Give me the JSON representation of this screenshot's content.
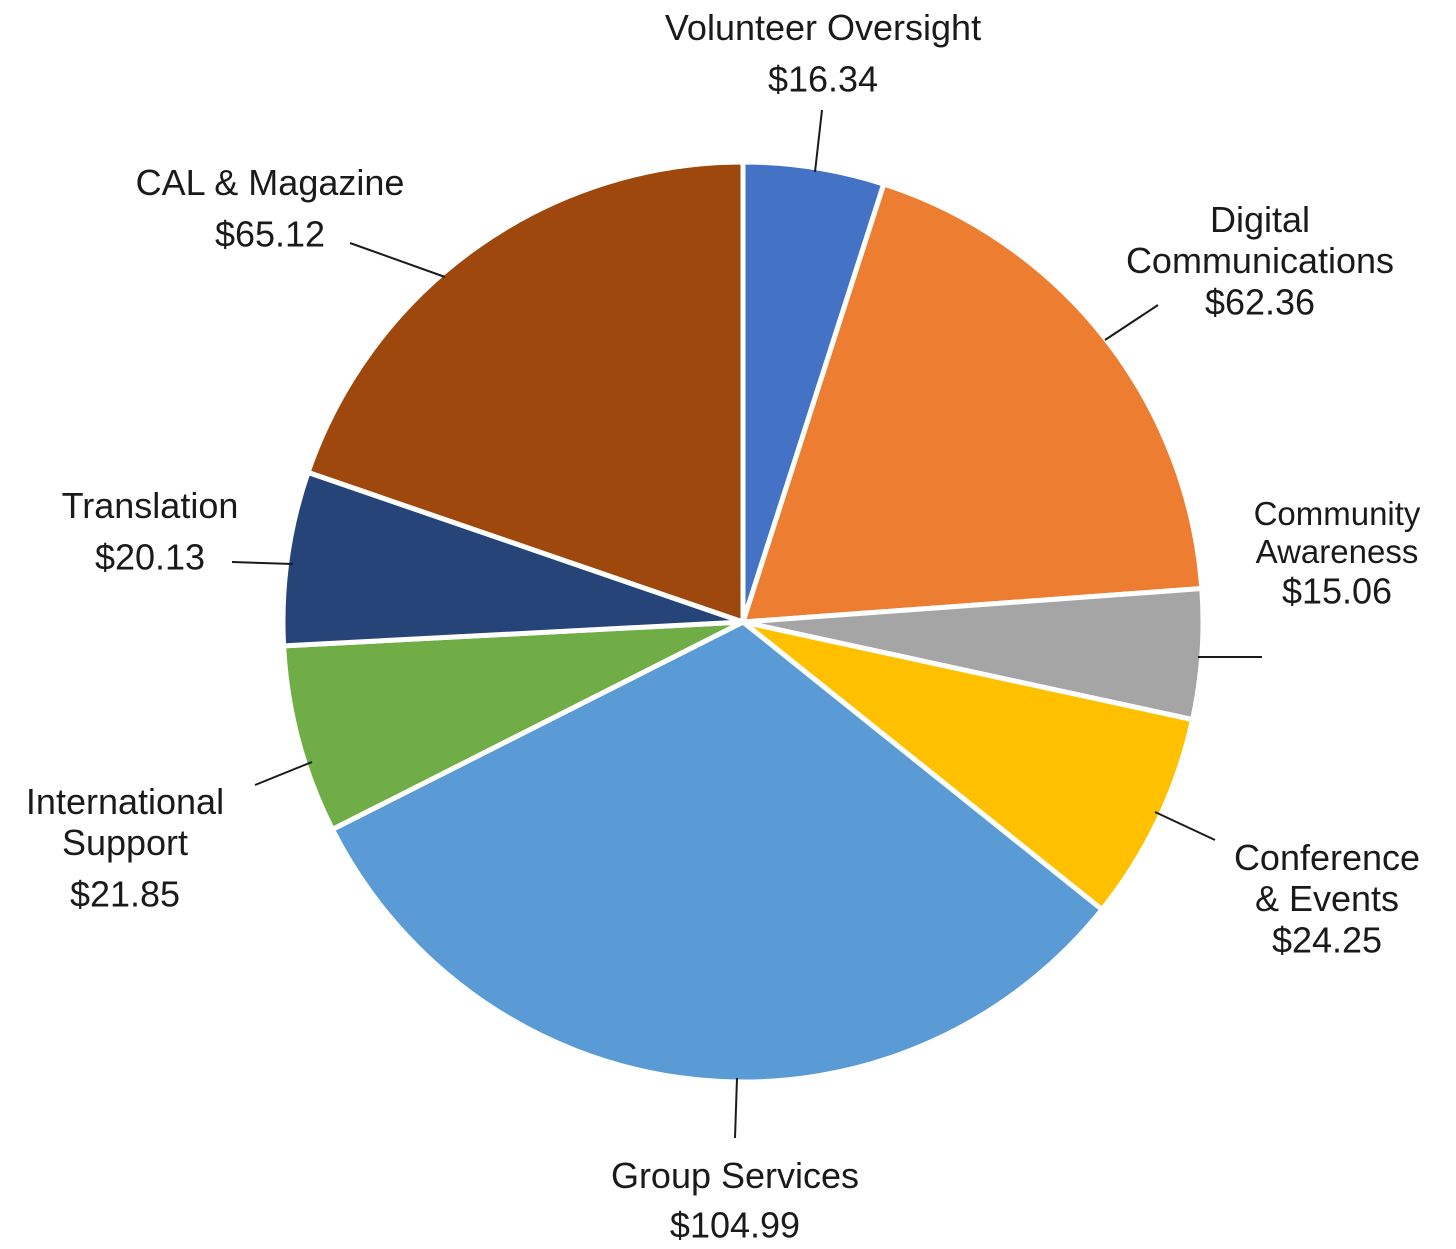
{
  "chart_data": {
    "type": "pie",
    "categories": [
      "Volunteer Oversight",
      "Digital\nCommunications",
      "Community\nAwareness",
      "Conference\n& Events",
      "Group Services",
      "International\nSupport",
      "Translation",
      "CAL & Magazine"
    ],
    "values": [
      16.34,
      62.36,
      15.06,
      24.25,
      104.99,
      21.85,
      20.13,
      65.12
    ],
    "value_labels": [
      "$16.34",
      "$62.36",
      "$15.06",
      "$24.25",
      "$104.99",
      "$21.85",
      "$20.13",
      "$65.12"
    ],
    "colors": [
      "#4472c4",
      "#ed7d31",
      "#a5a5a5",
      "#ffc000",
      "#5b9bd5",
      "#70ad47",
      "#264478",
      "#9e480e"
    ]
  }
}
